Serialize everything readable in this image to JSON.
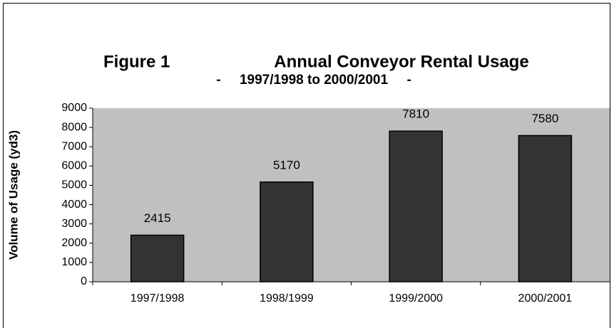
{
  "chart_data": {
    "type": "bar",
    "figure_label": "Figure 1",
    "title": "Annual Conveyor Rental Usage",
    "subtitle": "-     1997/1998 to 2000/2001     -",
    "y_label": "Volume of Usage (yd3)",
    "categories": [
      "1997/1998",
      "1998/1999",
      "1999/2000",
      "2000/2001"
    ],
    "values": [
      2415,
      5170,
      7810,
      7580
    ],
    "color": "#333333",
    "plot_background": "#c0c0c0",
    "ylim": [
      0,
      9000
    ],
    "yticks": [
      0,
      1000,
      2000,
      3000,
      4000,
      5000,
      6000,
      7000,
      8000,
      9000
    ],
    "grid": false
  }
}
